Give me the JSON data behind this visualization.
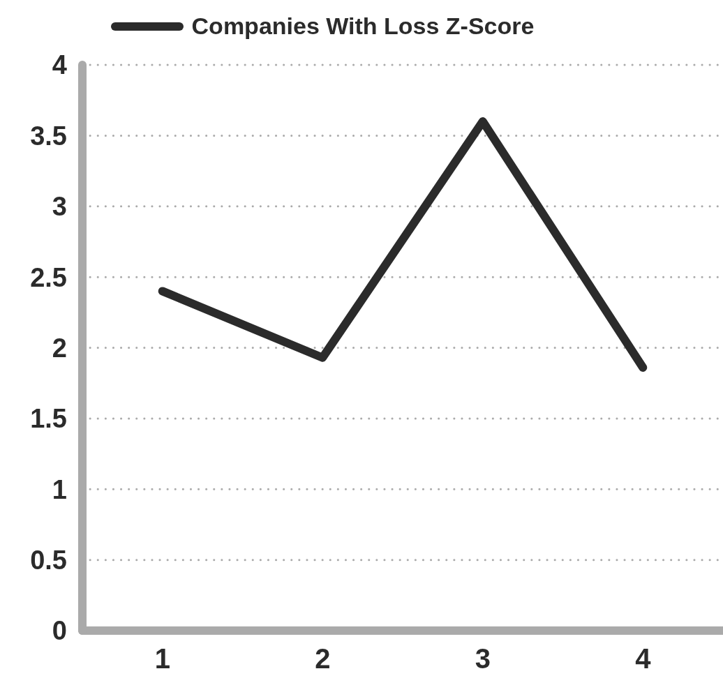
{
  "chart_data": {
    "type": "line",
    "categories": [
      "1",
      "2",
      "3",
      "4"
    ],
    "series": [
      {
        "name": "Companies With Loss Z-Score",
        "color": "#2b2b2b",
        "values": [
          2.4,
          1.93,
          3.6,
          1.86
        ]
      }
    ],
    "ylim": [
      0,
      4
    ],
    "yticks": [
      0,
      0.5,
      1,
      1.5,
      2,
      2.5,
      3,
      3.5,
      4
    ],
    "grid": "y",
    "legend": "top",
    "marker": "none",
    "line_style": "solid"
  }
}
